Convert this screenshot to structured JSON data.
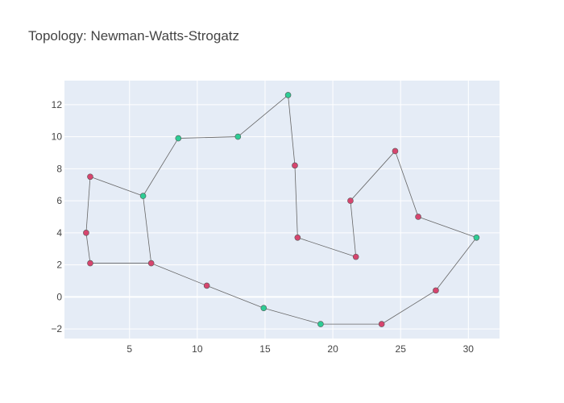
{
  "chart_data": {
    "type": "scatter",
    "title": "Topology: Newman-Watts-Strogatz",
    "xlabel": "",
    "ylabel": "",
    "xlim": [
      0.2,
      32.3
    ],
    "ylim": [
      -2.6,
      13.5
    ],
    "x_ticks": [
      5,
      10,
      15,
      20,
      25,
      30
    ],
    "y_ticks": [
      -2,
      0,
      2,
      4,
      6,
      8,
      10,
      12
    ],
    "grid": true,
    "legend": "none",
    "colors": {
      "plot_background": "#e5ecf6",
      "grid": "#ffffff",
      "edge": "#666666",
      "node_red": "#d6456e",
      "node_green": "#2ecc95",
      "node_outline": "#555555"
    },
    "nodes": [
      {
        "id": 0,
        "x": 1.8,
        "y": 4.0,
        "group": "red"
      },
      {
        "id": 1,
        "x": 2.1,
        "y": 7.5,
        "group": "red"
      },
      {
        "id": 2,
        "x": 6.0,
        "y": 6.3,
        "group": "green"
      },
      {
        "id": 3,
        "x": 8.6,
        "y": 9.9,
        "group": "green"
      },
      {
        "id": 4,
        "x": 13.0,
        "y": 10.0,
        "group": "green"
      },
      {
        "id": 5,
        "x": 16.7,
        "y": 12.6,
        "group": "green"
      },
      {
        "id": 6,
        "x": 17.2,
        "y": 8.2,
        "group": "red"
      },
      {
        "id": 7,
        "x": 17.4,
        "y": 3.7,
        "group": "red"
      },
      {
        "id": 8,
        "x": 21.7,
        "y": 2.5,
        "group": "red"
      },
      {
        "id": 9,
        "x": 21.3,
        "y": 6.0,
        "group": "red"
      },
      {
        "id": 10,
        "x": 24.6,
        "y": 9.1,
        "group": "red"
      },
      {
        "id": 11,
        "x": 26.3,
        "y": 5.0,
        "group": "red"
      },
      {
        "id": 12,
        "x": 30.6,
        "y": 3.7,
        "group": "green"
      },
      {
        "id": 13,
        "x": 27.6,
        "y": 0.4,
        "group": "red"
      },
      {
        "id": 14,
        "x": 23.6,
        "y": -1.7,
        "group": "red"
      },
      {
        "id": 15,
        "x": 19.1,
        "y": -1.7,
        "group": "green"
      },
      {
        "id": 16,
        "x": 14.9,
        "y": -0.7,
        "group": "green"
      },
      {
        "id": 17,
        "x": 10.7,
        "y": 0.7,
        "group": "red"
      },
      {
        "id": 18,
        "x": 6.6,
        "y": 2.1,
        "group": "red"
      },
      {
        "id": 19,
        "x": 2.1,
        "y": 2.1,
        "group": "red"
      }
    ],
    "edges": [
      [
        0,
        1
      ],
      [
        1,
        2
      ],
      [
        2,
        3
      ],
      [
        3,
        4
      ],
      [
        4,
        5
      ],
      [
        5,
        6
      ],
      [
        6,
        7
      ],
      [
        7,
        8
      ],
      [
        8,
        9
      ],
      [
        9,
        10
      ],
      [
        10,
        11
      ],
      [
        11,
        12
      ],
      [
        12,
        13
      ],
      [
        13,
        14
      ],
      [
        14,
        15
      ],
      [
        15,
        16
      ],
      [
        16,
        17
      ],
      [
        17,
        18
      ],
      [
        18,
        19
      ],
      [
        19,
        0
      ],
      [
        2,
        18
      ]
    ]
  }
}
